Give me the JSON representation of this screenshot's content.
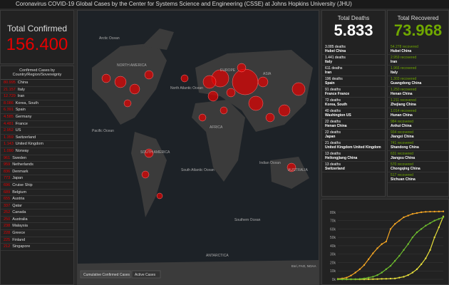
{
  "header": {
    "title": "Coronavirus COVID-19 Global Cases by the Center for Systems Science and Engineering (CSSE) at Johns Hopkins University (JHU)"
  },
  "confirmed": {
    "title": "Total Confirmed",
    "total": "156.400",
    "list_title": "Confirmed Cases by Country/Region/Sovereignty",
    "rows": [
      [
        "80.995",
        "China"
      ],
      [
        "21.157",
        "Italy"
      ],
      [
        "12.729",
        "Iran"
      ],
      [
        "8.086",
        "Korea, South"
      ],
      [
        "6.391",
        "Spain"
      ],
      [
        "4.585",
        "Germany"
      ],
      [
        "4.481",
        "France"
      ],
      [
        "2.952",
        "US"
      ],
      [
        "1.359",
        "Switzerland"
      ],
      [
        "1.143",
        "United Kingdom"
      ],
      [
        "1.090",
        "Norway"
      ],
      [
        "961",
        "Sweden"
      ],
      [
        "959",
        "Netherlands"
      ],
      [
        "836",
        "Denmark"
      ],
      [
        "773",
        "Japan"
      ],
      [
        "696",
        "Cruise Ship"
      ],
      [
        "689",
        "Belgium"
      ],
      [
        "655",
        "Austria"
      ],
      [
        "337",
        "Qatar"
      ],
      [
        "252",
        "Canada"
      ],
      [
        "250",
        "Australia"
      ],
      [
        "238",
        "Malaysia"
      ],
      [
        "228",
        "Greece"
      ],
      [
        "225",
        "Finland"
      ],
      [
        "212",
        "Singapore"
      ]
    ]
  },
  "map": {
    "tabs": [
      "Cumulative Confirmed Cases",
      "Active Cases"
    ],
    "attribution": "Esri, FAO, NOAA",
    "labels": [
      "Arctic Ocean",
      "NORTH AMERICA",
      "North Atlantic Ocean",
      "Pacific Ocean",
      "SOUTH AMERICA",
      "South Atlantic Ocean",
      "AFRICA",
      "EUROPE",
      "ASIA",
      "Indian Ocean",
      "AUSTRALIA",
      "Southern Ocean",
      "ANTARCTICA"
    ]
  },
  "deaths": {
    "title": "Total Deaths",
    "total": "5.833",
    "rows": [
      [
        "3.085 deaths",
        "Hubei China"
      ],
      [
        "1.441 deaths",
        "Italy"
      ],
      [
        "611 deaths",
        "Iran"
      ],
      [
        "196 deaths",
        "Spain"
      ],
      [
        "91 deaths",
        "France France"
      ],
      [
        "72 deaths",
        "Korea, South"
      ],
      [
        "40 deaths",
        "Washington US"
      ],
      [
        "22 deaths",
        "Henan China"
      ],
      [
        "22 deaths",
        "Japan"
      ],
      [
        "21 deaths",
        "United Kingdom United Kingdom"
      ],
      [
        "13 deaths",
        "Heilongjiang China"
      ],
      [
        "13 deaths",
        "Switzerland"
      ]
    ]
  },
  "recovered": {
    "title": "Total Recovered",
    "total": "73.968",
    "rows": [
      [
        "54.278 recovered",
        "Hubei China"
      ],
      [
        "2.959 recovered",
        "Iran"
      ],
      [
        "1.966 recovered",
        "Italy"
      ],
      [
        "1.303 recovered",
        "Guangdong China"
      ],
      [
        "1.250 recovered",
        "Henan China"
      ],
      [
        "1.211 recovered",
        "Zhejiang China"
      ],
      [
        "1.014 recovered",
        "Hunan China"
      ],
      [
        "984 recovered",
        "Anhui China"
      ],
      [
        "934 recovered",
        "Jiangxi China"
      ],
      [
        "741 recovered",
        "Shandong China"
      ],
      [
        "631 recovered",
        "Jiangsu China"
      ],
      [
        "570 recovered",
        "Chongqing China"
      ],
      [
        "517 recovered",
        "Sichuan China"
      ]
    ]
  },
  "chart_data": {
    "type": "line",
    "ylim": [
      0,
      85000
    ],
    "yticks": [
      {
        "value": 0,
        "label": "0k"
      },
      {
        "value": 10000,
        "label": "10k"
      },
      {
        "value": 20000,
        "label": "20k"
      },
      {
        "value": 30000,
        "label": "30k"
      },
      {
        "value": 40000,
        "label": "40k"
      },
      {
        "value": 50000,
        "label": "50k"
      },
      {
        "value": 60000,
        "label": "60k"
      },
      {
        "value": 70000,
        "label": "70k"
      },
      {
        "value": 80000,
        "label": "80k"
      }
    ],
    "series": [
      {
        "color": "#f5a623",
        "values": [
          500,
          1000,
          2000,
          4500,
          8000,
          12000,
          17000,
          24000,
          31000,
          37000,
          42000,
          45000,
          60000,
          66000,
          70000,
          74000,
          76000,
          78000,
          79000,
          80000,
          80500,
          80700,
          80800,
          80900,
          81000
        ]
      },
      {
        "color": "#e8e03a",
        "values": [
          0,
          0,
          0,
          0,
          0,
          0,
          0,
          100,
          200,
          300,
          500,
          600,
          800,
          1000,
          2000,
          3000,
          5000,
          8000,
          12000,
          18000,
          25000,
          35000,
          50000,
          62000,
          75000
        ]
      },
      {
        "color": "#6fbf2e",
        "values": [
          0,
          0,
          0,
          100,
          200,
          500,
          1000,
          2000,
          3000,
          5000,
          8000,
          12000,
          16000,
          22000,
          28000,
          35000,
          42000,
          50000,
          56000,
          60000,
          64000,
          67000,
          70000,
          72000,
          74000
        ]
      }
    ],
    "grid": true
  }
}
